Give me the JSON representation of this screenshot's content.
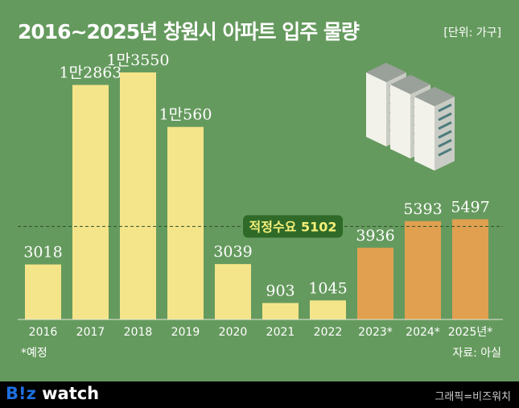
{
  "title": "2016~2025년 창원시 아파트 입주 물량",
  "unit": "[단위: 가구]",
  "note": "*예정",
  "source": "자료: 아실",
  "footer": {
    "logo_b": "B!z",
    "logo_rest": " watch",
    "credit": "그래픽=비즈워치"
  },
  "colors": {
    "background": "#659a5e",
    "actual": "#f5e58a",
    "forecast": "#e0a050",
    "ref_label_bg": "#2f6a28",
    "ref_label_text": "#f5f07a"
  },
  "chart_data": {
    "type": "bar",
    "title": "2016~2025년 창원시 아파트 입주 물량",
    "ylabel": "가구",
    "ylim": [
      0,
      13550
    ],
    "categories": [
      "2016",
      "2017",
      "2018",
      "2019",
      "2020",
      "2021",
      "2022",
      "2023*",
      "2024*",
      "2025년*"
    ],
    "values": [
      3018,
      12863,
      13550,
      10560,
      3039,
      903,
      1045,
      3936,
      5393,
      5497
    ],
    "labels": [
      "3018",
      "1만2863",
      "1만3550",
      "1만560",
      "3039",
      "903",
      "1045",
      "3936",
      "5393",
      "5497"
    ],
    "forecast": [
      false,
      false,
      false,
      false,
      false,
      false,
      false,
      true,
      true,
      true
    ],
    "reference": {
      "label": "적정수요 5102",
      "value": 5102
    }
  }
}
